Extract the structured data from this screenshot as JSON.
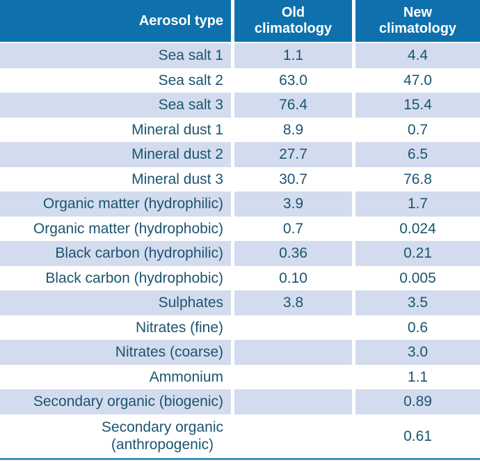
{
  "table": {
    "header": {
      "aerosol_type": "Aerosol type",
      "old_climatology": "Old\nclimatology",
      "new_climatology": "New\nclimatology"
    },
    "rows": [
      {
        "label": "Sea salt 1",
        "old": "1.1",
        "new": "4.4"
      },
      {
        "label": "Sea salt 2",
        "old": "63.0",
        "new": "47.0"
      },
      {
        "label": "Sea salt 3",
        "old": "76.4",
        "new": "15.4"
      },
      {
        "label": "Mineral dust 1",
        "old": "8.9",
        "new": "0.7"
      },
      {
        "label": "Mineral dust 2",
        "old": "27.7",
        "new": "6.5"
      },
      {
        "label": "Mineral dust 3",
        "old": "30.7",
        "new": "76.8"
      },
      {
        "label": "Organic matter (hydrophilic)",
        "old": "3.9",
        "new": "1.7"
      },
      {
        "label": "Organic matter (hydrophobic)",
        "old": "0.7",
        "new": "0.024"
      },
      {
        "label": "Black carbon (hydrophilic)",
        "old": "0.36",
        "new": "0.21"
      },
      {
        "label": "Black carbon (hydrophobic)",
        "old": "0.10",
        "new": "0.005"
      },
      {
        "label": "Sulphates",
        "old": "3.8",
        "new": "3.5"
      },
      {
        "label": "Nitrates (fine)",
        "old": "",
        "new": "0.6"
      },
      {
        "label": "Nitrates (coarse)",
        "old": "",
        "new": "3.0"
      },
      {
        "label": "Ammonium",
        "old": "",
        "new": "1.1"
      },
      {
        "label": "Secondary organic (biogenic)",
        "old": "",
        "new": "0.89"
      },
      {
        "label": "Secondary organic\n(anthropogenic)",
        "old": "",
        "new": "0.61"
      }
    ],
    "colors": {
      "header_bg": "#0e71ad",
      "row_alt_bg": "#d3dcee",
      "text": "#1b5470",
      "header_text": "#ffffff"
    }
  },
  "chart_data": {
    "type": "table",
    "title": "",
    "columns": [
      "Aerosol type",
      "Old climatology",
      "New climatology"
    ],
    "rows": [
      [
        "Sea salt 1",
        1.1,
        4.4
      ],
      [
        "Sea salt 2",
        63.0,
        47.0
      ],
      [
        "Sea salt 3",
        76.4,
        15.4
      ],
      [
        "Mineral dust 1",
        8.9,
        0.7
      ],
      [
        "Mineral dust 2",
        27.7,
        6.5
      ],
      [
        "Mineral dust 3",
        30.7,
        76.8
      ],
      [
        "Organic matter (hydrophilic)",
        3.9,
        1.7
      ],
      [
        "Organic matter (hydrophobic)",
        0.7,
        0.024
      ],
      [
        "Black carbon (hydrophilic)",
        0.36,
        0.21
      ],
      [
        "Black carbon (hydrophobic)",
        0.1,
        0.005
      ],
      [
        "Sulphates",
        3.8,
        3.5
      ],
      [
        "Nitrates (fine)",
        null,
        0.6
      ],
      [
        "Nitrates (coarse)",
        null,
        3.0
      ],
      [
        "Ammonium",
        null,
        1.1
      ],
      [
        "Secondary organic (biogenic)",
        null,
        0.89
      ],
      [
        "Secondary organic (anthropogenic)",
        null,
        0.61
      ]
    ],
    "layout_hints": {
      "row_striping": "alternating light blue / white",
      "first_column_align": "right",
      "value_columns_align": "center"
    }
  }
}
